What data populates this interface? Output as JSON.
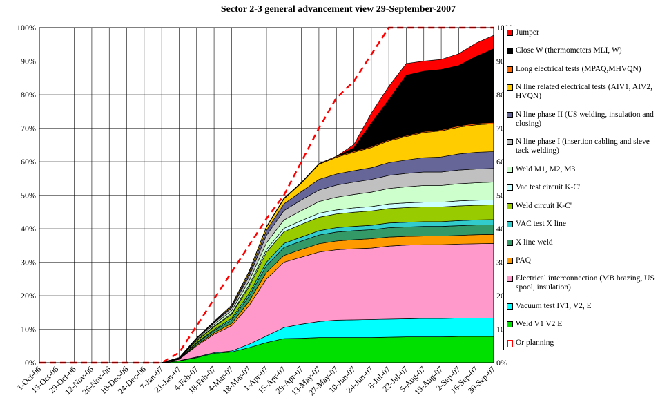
{
  "chart_data": {
    "type": "area",
    "stacked": true,
    "title": "Sector 2-3 general advancement view 29-September-2007",
    "categories": [
      "1-Oct-06",
      "15-Oct-06",
      "29-Oct-06",
      "12-Nov-06",
      "26-Nov-06",
      "10-Dec-06",
      "24-Dec-06",
      "7-Jan-07",
      "21-Jan-07",
      "4-Feb-07",
      "18-Feb-07",
      "4-Mar-07",
      "18-Mar-07",
      "1-Apr-07",
      "15-Apr-07",
      "29-Apr-07",
      "13-May-07",
      "27-May-07",
      "10-Jun-07",
      "24-Jun-07",
      "8-Jul-07",
      "22-Jul-07",
      "5-Aug-07",
      "19-Aug-07",
      "2-Sep-07",
      "16-Sep-07",
      "30-Sep-07"
    ],
    "ylim": [
      0,
      100
    ],
    "yticks": [
      {
        "value": 0,
        "label": "0%"
      },
      {
        "value": 10,
        "label": "10%"
      },
      {
        "value": 20,
        "label": "20%"
      },
      {
        "value": 30,
        "label": "30%"
      },
      {
        "value": 40,
        "label": "40%"
      },
      {
        "value": 50,
        "label": "50%"
      },
      {
        "value": 60,
        "label": "60%"
      },
      {
        "value": 70,
        "label": "70%"
      },
      {
        "value": 80,
        "label": "80%"
      },
      {
        "value": 90,
        "label": "90%"
      },
      {
        "value": 100,
        "label": "100%"
      }
    ],
    "grid": true,
    "legend": "right",
    "series": [
      {
        "name": "Weld V1 V2 E",
        "color": "#00e000",
        "values": [
          0,
          0,
          0,
          0,
          0,
          0,
          0,
          0,
          0.5,
          1.5,
          2.8,
          3.2,
          4.5,
          6,
          7.2,
          7.3,
          7.5,
          7.5,
          7.5,
          7.5,
          7.6,
          7.7,
          7.7,
          7.7,
          7.8,
          7.8,
          7.8
        ]
      },
      {
        "name": "Vacuum test IV1, V2, E",
        "color": "#00ffff",
        "values": [
          0,
          0,
          0,
          0,
          0,
          0,
          0,
          0,
          0.1,
          0.2,
          0.2,
          0.3,
          1,
          2,
          3.3,
          4.2,
          4.8,
          5.2,
          5.3,
          5.4,
          5.4,
          5.4,
          5.5,
          5.5,
          5.5,
          5.5,
          5.5
        ]
      },
      {
        "name": "Electrical interconnection (MB brazing, US spool, insulation)",
        "color": "#ff99cc",
        "values": [
          0,
          0,
          0,
          0,
          0,
          0,
          0,
          0,
          0.4,
          3.3,
          5.5,
          7.5,
          11.5,
          17,
          19.5,
          20,
          20.7,
          21,
          21.2,
          21.3,
          21.8,
          22,
          22,
          22,
          22.1,
          22.2,
          22.3
        ]
      },
      {
        "name": "PAQ",
        "color": "#ff9900",
        "values": [
          0,
          0,
          0,
          0,
          0,
          0,
          0,
          0,
          0.1,
          0.3,
          0.4,
          0.7,
          1.3,
          2,
          2,
          2.3,
          2.5,
          2.6,
          2.7,
          2.8,
          2.7,
          2.6,
          2.6,
          2.6,
          2.6,
          2.7,
          2.7
        ]
      },
      {
        "name": "X line weld",
        "color": "#339966",
        "values": [
          0,
          0,
          0,
          0,
          0,
          0,
          0,
          0,
          0.1,
          0.5,
          0.7,
          1,
          1.5,
          2,
          2.4,
          2.5,
          2.6,
          2.7,
          2.7,
          2.7,
          2.8,
          2.8,
          2.9,
          2.9,
          2.9,
          2.9,
          2.9
        ]
      },
      {
        "name": "VAC test X line",
        "color": "#33cccc",
        "values": [
          0,
          0,
          0,
          0,
          0,
          0,
          0,
          0,
          0,
          0.2,
          0.3,
          0.5,
          0.8,
          1,
          1.2,
          1.2,
          1.3,
          1.3,
          1.3,
          1.3,
          1.4,
          1.4,
          1.4,
          1.4,
          1.5,
          1.5,
          1.5
        ]
      },
      {
        "name": "Weld circuit K-C'",
        "color": "#99cc00",
        "values": [
          0,
          0,
          0,
          0,
          0,
          0,
          0,
          0,
          0.1,
          0.5,
          0.8,
          1.2,
          2,
          3,
          3.5,
          3.8,
          4,
          4.1,
          4.2,
          4.3,
          4.3,
          4.4,
          4.4,
          4.4,
          4.4,
          4.4,
          4.4
        ]
      },
      {
        "name": "Vac test circuit K-C'",
        "color": "#ccffff",
        "values": [
          0,
          0,
          0,
          0,
          0,
          0,
          0,
          0,
          0,
          0.1,
          0.2,
          0.3,
          0.5,
          0.8,
          1,
          1.1,
          1.2,
          1.2,
          1.3,
          1.3,
          1.4,
          1.4,
          1.4,
          1.4,
          1.5,
          1.5,
          1.5
        ]
      },
      {
        "name": "Weld M1, M2, M3",
        "color": "#ccffcc",
        "values": [
          0,
          0,
          0,
          0,
          0,
          0,
          0,
          0,
          0.1,
          0.3,
          0.5,
          0.8,
          1.3,
          2,
          2.5,
          3,
          3.5,
          3.8,
          4,
          4.3,
          4.6,
          4.8,
          5,
          5,
          5.1,
          5.2,
          5.3
        ]
      },
      {
        "name": "N line phase I (insertion cabling and sleve tack welding)",
        "color": "#c0c0c0",
        "values": [
          0,
          0,
          0,
          0,
          0,
          0,
          0,
          0,
          0.1,
          0.3,
          0.5,
          0.8,
          1.3,
          2.2,
          2.8,
          3.2,
          3.4,
          3.6,
          3.7,
          3.8,
          3.9,
          4,
          4,
          4,
          4.1,
          4.1,
          4.1
        ]
      },
      {
        "name": "N line phase II (US welding, insulation and closing)",
        "color": "#666699",
        "values": [
          0,
          0,
          0,
          0,
          0,
          0,
          0,
          0,
          0,
          0.1,
          0.2,
          0.4,
          0.8,
          1.5,
          2,
          2.5,
          3.2,
          3.3,
          3.4,
          3.5,
          3.8,
          4,
          4.3,
          4.5,
          4.8,
          5,
          5
        ]
      },
      {
        "name": "N line related electrical tests (AIV1, AIV2, HVQN)",
        "color": "#ffcc00",
        "values": [
          0,
          0,
          0,
          0,
          0,
          0,
          0,
          0,
          0,
          0.1,
          0.2,
          0.4,
          0.6,
          1,
          1.5,
          2.5,
          4.5,
          5,
          5.5,
          6,
          6.5,
          7,
          7.5,
          7.8,
          8,
          8.2,
          8.3
        ]
      },
      {
        "name": "Long electrical tests (MPAQ,MHVQN)",
        "color": "#ff6600",
        "values": [
          0,
          0,
          0,
          0,
          0,
          0,
          0,
          0,
          0,
          0,
          0,
          0,
          0.1,
          0.1,
          0.2,
          0.2,
          0.2,
          0.3,
          0.3,
          0.3,
          0.3,
          0.3,
          0.3,
          0.3,
          0.4,
          0.4,
          0.4
        ]
      },
      {
        "name": "Close W (thermometers MLI, W)",
        "color": "#000000",
        "values": [
          0,
          0,
          0,
          0,
          0,
          0,
          0,
          0,
          0,
          0,
          0,
          0,
          0,
          0,
          0,
          0,
          0,
          0,
          1,
          7,
          12,
          18,
          18,
          18,
          18,
          20,
          22
        ]
      },
      {
        "name": "Jumper",
        "color": "#ff0000",
        "values": [
          0,
          0,
          0,
          0,
          0,
          0,
          0,
          0,
          0,
          0,
          0,
          0,
          0,
          0,
          0,
          0,
          0,
          0,
          1,
          3,
          4,
          3.5,
          3,
          3,
          3.5,
          4,
          4
        ]
      },
      {
        "name": "Or planning",
        "color": "#ff0000",
        "type": "line",
        "values": [
          0,
          0,
          0,
          0,
          0,
          0,
          0,
          0,
          3,
          11,
          19,
          27,
          35,
          43,
          50,
          60,
          70,
          79,
          84,
          92,
          100,
          100,
          100,
          100,
          100,
          100,
          100
        ]
      }
    ]
  }
}
